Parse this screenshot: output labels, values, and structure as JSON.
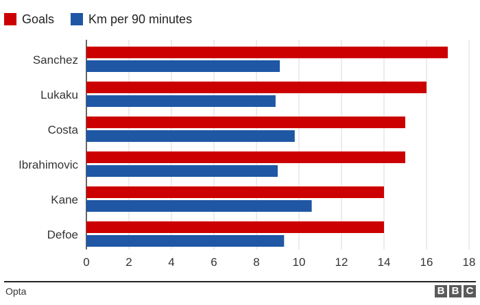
{
  "legend": [
    {
      "label": "Goals",
      "color": "#cc0000"
    },
    {
      "label": "Km per 90 minutes",
      "color": "#1f57a5"
    }
  ],
  "footer": {
    "source": "Opta",
    "logo_letters": [
      "B",
      "B",
      "C"
    ]
  },
  "chart_data": {
    "type": "bar",
    "orientation": "horizontal",
    "categories": [
      "Sanchez",
      "Lukaku",
      "Costa",
      "Ibrahimovic",
      "Kane",
      "Defoe"
    ],
    "series": [
      {
        "name": "Goals",
        "color": "#cc0000",
        "values": [
          17,
          16,
          15,
          15,
          14,
          14
        ]
      },
      {
        "name": "Km per 90 minutes",
        "color": "#1f57a5",
        "values": [
          9.1,
          8.9,
          9.8,
          9.0,
          10.6,
          9.3
        ]
      }
    ],
    "xlim": [
      0,
      18
    ],
    "xticks": [
      0,
      2,
      4,
      6,
      8,
      10,
      12,
      14,
      16,
      18
    ],
    "grid": true,
    "legend_position": "top-left",
    "title": "",
    "xlabel": "",
    "ylabel": ""
  }
}
